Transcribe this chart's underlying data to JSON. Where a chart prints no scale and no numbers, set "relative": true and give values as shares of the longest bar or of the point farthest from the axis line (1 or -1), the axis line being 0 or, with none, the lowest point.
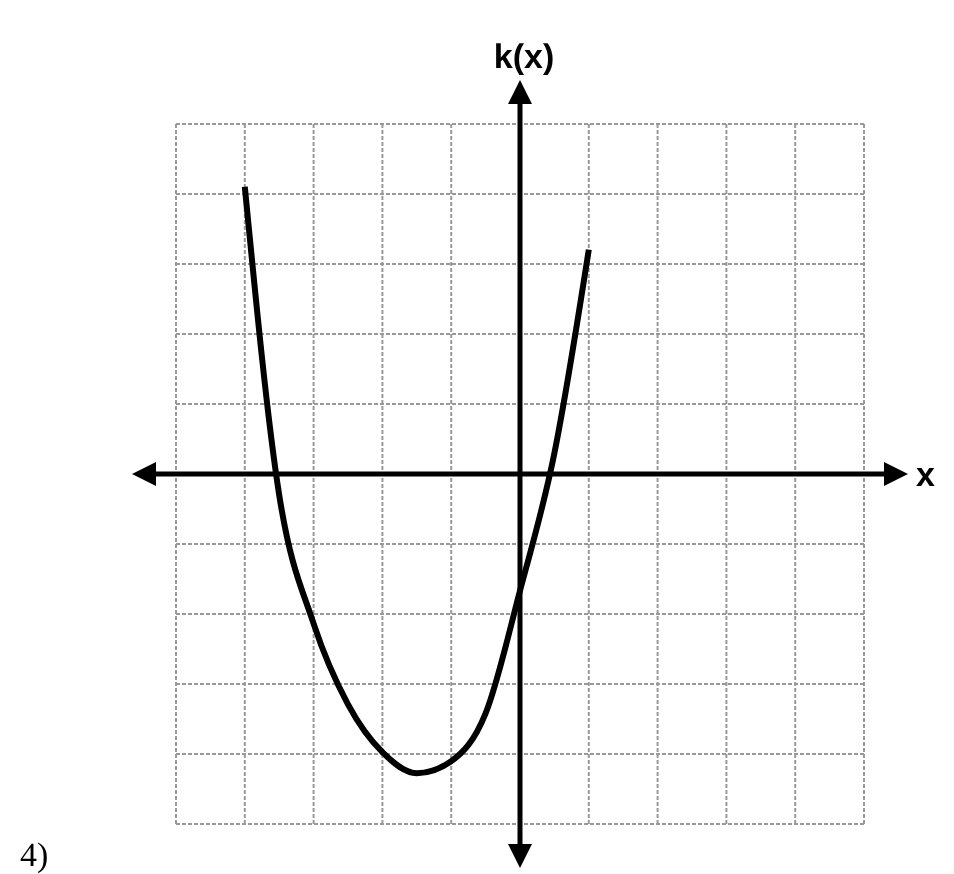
{
  "chart_data": {
    "type": "line",
    "ylabel": "k(x)",
    "annotations": [
      "4)",
      "x"
    ],
    "relative": true,
    "grid": true,
    "categories": [
      null,
      null,
      null,
      null,
      null,
      null,
      null,
      null,
      null,
      null,
      null
    ],
    "series": [
      {
        "color": "#000000",
        "values": [
          0.96,
          -0.07,
          -0.5,
          -0.77,
          -0.93,
          -1,
          -0.96,
          -0.8,
          -0.39,
          0.07,
          0.75
        ]
      }
    ]
  }
}
